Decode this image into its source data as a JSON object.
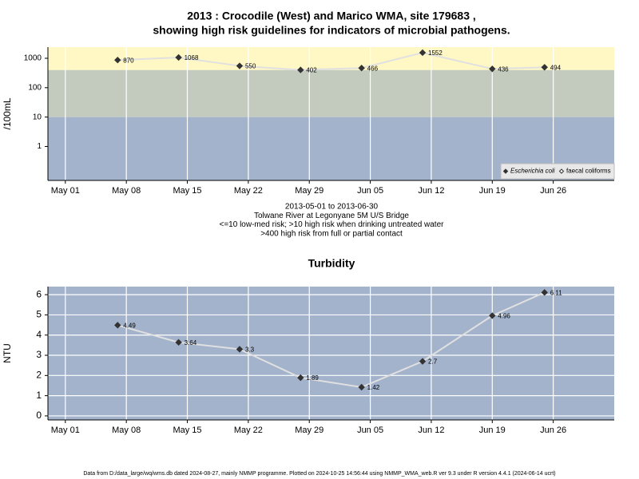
{
  "chart_data": [
    {
      "type": "line",
      "title": [
        "2013 : Crocodile (West) and Marico WMA, site 179683 ,",
        "showing high risk guidelines for indicators of microbial pathogens."
      ],
      "subtitle": [
        "2013-05-01 to 2013-06-30",
        "Tolwane River at Legonyane 5M U/S Bridge",
        "<=10 low-med risk; >10 high risk when drinking untreated water",
        ">400 high risk from full or partial contact"
      ],
      "ylabel": "/100mL",
      "log_scale": true,
      "grid": "x",
      "legend": "bottom-right",
      "bands": [
        {
          "to": 10,
          "color": "#a3b3cc"
        },
        {
          "from": 10,
          "to": 400,
          "color": "#c3cbbf"
        },
        {
          "from": 400,
          "color": "#fff8c4"
        }
      ],
      "x": [
        "2013-05-07",
        "2013-05-14",
        "2013-05-21",
        "2013-05-28",
        "2013-06-04",
        "2013-06-11",
        "2013-06-19",
        "2013-06-25"
      ],
      "series": [
        {
          "name": "Escherichia coli",
          "color": "#333333",
          "line_color": "#e0e0e0",
          "marker": "filled",
          "values": [
            870,
            1068,
            550,
            402,
            466,
            1552,
            436,
            494
          ]
        },
        {
          "name": "faecal coliforms",
          "color": "#333333",
          "line_color": "#e0e0e0",
          "marker": "open",
          "values": [
            null,
            null,
            null,
            null,
            null,
            null,
            null,
            null
          ]
        }
      ],
      "xlim": [
        "2013-04-29",
        "2013-07-03"
      ],
      "xticks": [
        {
          "value": "2013-05-01",
          "label": "May 01"
        },
        {
          "value": "2013-05-08",
          "label": "May 08"
        },
        {
          "value": "2013-05-15",
          "label": "May 15"
        },
        {
          "value": "2013-05-22",
          "label": "May 22"
        },
        {
          "value": "2013-05-29",
          "label": "May 29"
        },
        {
          "value": "2013-06-05",
          "label": "Jun 05"
        },
        {
          "value": "2013-06-12",
          "label": "Jun 12"
        },
        {
          "value": "2013-06-19",
          "label": "Jun 19"
        },
        {
          "value": "2013-06-26",
          "label": "Jun 26"
        }
      ],
      "ylim": [
        0.07,
        2400
      ],
      "yticks": [
        1,
        10,
        100,
        1000
      ]
    },
    {
      "type": "line",
      "title": [
        "Turbidity"
      ],
      "ylabel": "NTU",
      "log_scale": false,
      "grid": "both",
      "background": "#a3b3cc",
      "x": [
        "2013-05-07",
        "2013-05-14",
        "2013-05-21",
        "2013-05-28",
        "2013-06-04",
        "2013-06-11",
        "2013-06-19",
        "2013-06-25"
      ],
      "series": [
        {
          "color": "#333333",
          "line_color": "#e0e0e0",
          "marker": "filled",
          "values": [
            4.49,
            3.64,
            3.3,
            1.89,
            1.42,
            2.7,
            4.96,
            6.11
          ]
        }
      ],
      "xlim": [
        "2013-04-29",
        "2013-07-03"
      ],
      "xticks": [
        {
          "value": "2013-05-01",
          "label": "May 01"
        },
        {
          "value": "2013-05-08",
          "label": "May 08"
        },
        {
          "value": "2013-05-15",
          "label": "May 15"
        },
        {
          "value": "2013-05-22",
          "label": "May 22"
        },
        {
          "value": "2013-05-29",
          "label": "May 29"
        },
        {
          "value": "2013-06-05",
          "label": "Jun 05"
        },
        {
          "value": "2013-06-12",
          "label": "Jun 12"
        },
        {
          "value": "2013-06-19",
          "label": "Jun 19"
        },
        {
          "value": "2013-06-26",
          "label": "Jun 26"
        }
      ],
      "ylim": [
        -0.2,
        6.4
      ],
      "yticks": [
        0,
        1,
        2,
        3,
        4,
        5,
        6
      ]
    }
  ],
  "footer": "Data from D:/data_large/wq/wms.db dated 2024-08-27, mainly NMMP programme. Plotted on 2024-10-25 14:56:44 using NMMP_WMA_web.R ver 9.3 under R version 4.4.1 (2024-06-14 ucrt)"
}
